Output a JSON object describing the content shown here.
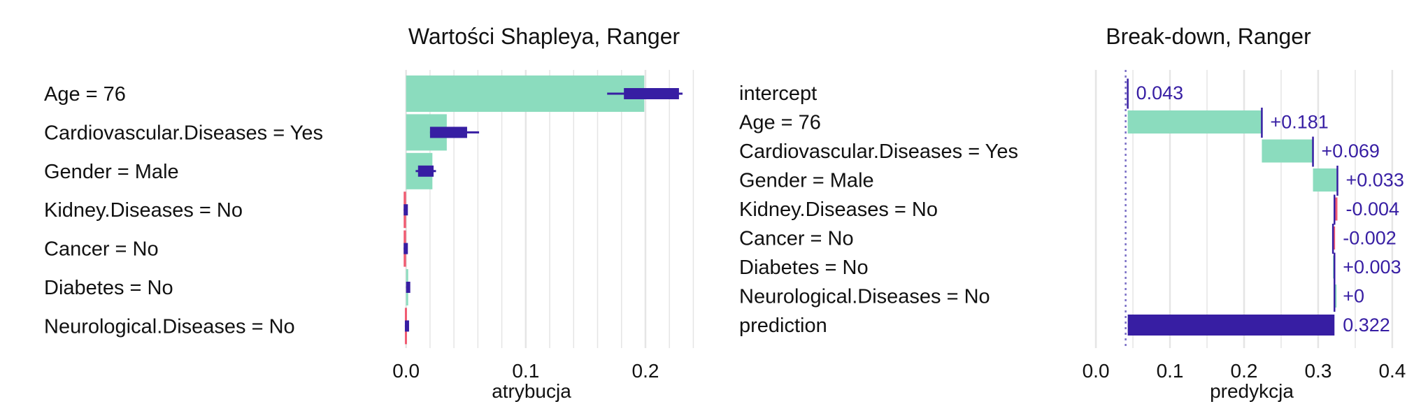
{
  "chart_data": [
    {
      "type": "bar",
      "title": "Wartości Shapleya, Ranger",
      "xlabel": "atrybucja",
      "xticks": [
        0.0,
        0.1,
        0.2
      ],
      "xtick_labels": [
        "0.0",
        "0.1",
        "0.2"
      ],
      "xlim": [
        -0.015,
        0.245
      ],
      "grid": true,
      "features": [
        {
          "label": "Age = 76",
          "value": 0.199,
          "box_low": 0.182,
          "box_high": 0.228,
          "whisker_low": 0.168,
          "whisker_high": 0.231
        },
        {
          "label": "Cardiovascular.Diseases = Yes",
          "value": 0.034,
          "box_low": 0.02,
          "box_high": 0.051,
          "whisker_low": 0.02,
          "whisker_high": 0.061
        },
        {
          "label": "Gender = Male",
          "value": 0.022,
          "box_low": 0.01,
          "box_high": 0.023,
          "whisker_low": 0.008,
          "whisker_high": 0.025
        },
        {
          "label": "Kidney.Diseases = No",
          "value": -0.002,
          "box_low": -0.002,
          "box_high": -0.001,
          "whisker_low": -0.002,
          "whisker_high": -0.001
        },
        {
          "label": "Cancer = No",
          "value": -0.002,
          "box_low": -0.002,
          "box_high": -0.001,
          "whisker_low": -0.002,
          "whisker_high": -0.001
        },
        {
          "label": "Diabetes = No",
          "value": 0.001,
          "box_low": 0.0,
          "box_high": 0.003,
          "whisker_low": 0.0,
          "whisker_high": 0.003
        },
        {
          "label": "Neurological.Diseases = No",
          "value": -0.001,
          "box_low": -0.001,
          "box_high": 0.001,
          "whisker_low": -0.001,
          "whisker_high": 0.001
        }
      ],
      "colors": {
        "positive": "#8bdcbe",
        "negative": "#f05a71",
        "box": "#371ea3",
        "grid": "#e5e5e5"
      }
    },
    {
      "type": "bar",
      "title": "Break-down, Ranger",
      "xlabel": "predykcja",
      "xticks": [
        0.0,
        0.1,
        0.2,
        0.3,
        0.4
      ],
      "xtick_labels": [
        "0.0",
        "0.1",
        "0.2",
        "0.3",
        "0.4"
      ],
      "xlim": [
        -0.018,
        0.435
      ],
      "grid": true,
      "rows": [
        {
          "label": "intercept",
          "start": 0.0,
          "end": 0.043,
          "value_label": "0.043",
          "kind": "intercept"
        },
        {
          "label": "Age = 76",
          "start": 0.043,
          "end": 0.224,
          "value_label": "+0.181",
          "kind": "positive"
        },
        {
          "label": "Cardiovascular.Diseases = Yes",
          "start": 0.224,
          "end": 0.293,
          "value_label": "+0.069",
          "kind": "positive"
        },
        {
          "label": "Gender = Male",
          "start": 0.293,
          "end": 0.326,
          "value_label": "+0.033",
          "kind": "positive"
        },
        {
          "label": "Kidney.Diseases = No",
          "start": 0.326,
          "end": 0.322,
          "value_label": "-0.004",
          "kind": "negative"
        },
        {
          "label": "Cancer = No",
          "start": 0.322,
          "end": 0.32,
          "value_label": "-0.002",
          "kind": "negative"
        },
        {
          "label": "Diabetes = No",
          "start": 0.32,
          "end": 0.322,
          "value_label": "+0.003",
          "kind": "positive"
        },
        {
          "label": "Neurological.Diseases = No",
          "start": 0.322,
          "end": 0.322,
          "value_label": "+0",
          "kind": "positive"
        },
        {
          "label": "prediction",
          "start": 0.043,
          "end": 0.322,
          "value_label": "0.322",
          "kind": "prediction"
        }
      ],
      "intercept_line": 0.043,
      "colors": {
        "positive": "#8bdcbe",
        "negative": "#f05a71",
        "prediction": "#371ea3",
        "label": "#371ea3",
        "grid": "#e5e5e5"
      }
    }
  ]
}
